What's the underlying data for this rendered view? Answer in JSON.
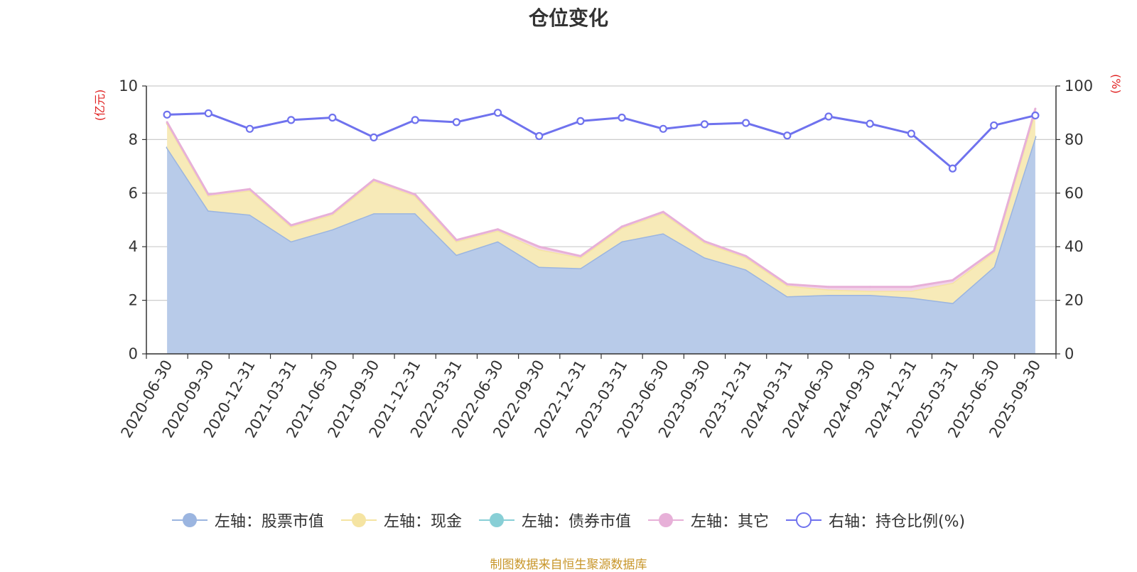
{
  "chart_data": {
    "type": "area",
    "title": "仓位变化",
    "left_axis_label": "(亿元)",
    "right_axis_label": "(%)",
    "left_ylim": [
      0,
      10
    ],
    "left_ticks": [
      0,
      2,
      4,
      6,
      8,
      10
    ],
    "right_ylim": [
      0,
      100
    ],
    "right_ticks": [
      0,
      20,
      40,
      60,
      80,
      100
    ],
    "categories": [
      "2020-06-30",
      "2020-09-30",
      "2020-12-31",
      "2021-03-31",
      "2021-06-30",
      "2021-09-30",
      "2021-12-31",
      "2022-03-31",
      "2022-06-30",
      "2022-09-30",
      "2022-12-31",
      "2023-03-31",
      "2023-06-30",
      "2023-09-30",
      "2023-12-31",
      "2024-03-31",
      "2024-06-30",
      "2024-09-30",
      "2024-12-31",
      "2025-03-31",
      "2025-06-30",
      "2025-09-30"
    ],
    "series": [
      {
        "name": "左轴：股票市值",
        "axis": "left",
        "color": "#9bb5e0",
        "fill": "#b8cbe9",
        "values": [
          7.7,
          5.35,
          5.2,
          4.2,
          4.65,
          5.25,
          5.25,
          3.7,
          4.2,
          3.25,
          3.2,
          4.2,
          4.5,
          3.6,
          3.15,
          2.15,
          2.2,
          2.2,
          2.1,
          1.9,
          3.25,
          8.1
        ]
      },
      {
        "name": "左轴：现金",
        "axis": "left",
        "color": "#f5e4a2",
        "fill": "#f7eab8",
        "values": [
          0.9,
          0.55,
          0.9,
          0.55,
          0.55,
          1.2,
          0.65,
          0.5,
          0.4,
          0.65,
          0.4,
          0.5,
          0.75,
          0.55,
          0.45,
          0.4,
          0.2,
          0.15,
          0.25,
          0.75,
          0.55,
          0.95
        ]
      },
      {
        "name": "左轴：债券市值",
        "axis": "left",
        "color": "#88cfd6",
        "fill": "#bfe3e7",
        "values": [
          0,
          0,
          0,
          0,
          0,
          0,
          0,
          0,
          0,
          0,
          0,
          0,
          0,
          0,
          0,
          0,
          0,
          0,
          0,
          0,
          0,
          0
        ]
      },
      {
        "name": "左轴：其它",
        "axis": "left",
        "color": "#e7b0d8",
        "fill": "#f2d2e8",
        "values": [
          0.05,
          0.05,
          0.05,
          0.05,
          0.05,
          0.05,
          0.05,
          0.05,
          0.05,
          0.1,
          0.05,
          0.05,
          0.05,
          0.05,
          0.05,
          0.05,
          0.1,
          0.15,
          0.15,
          0.1,
          0.05,
          0.1
        ]
      },
      {
        "name": "右轴：持仓比例(%)",
        "axis": "right",
        "color": "#6f72ee",
        "values": [
          89.3,
          89.8,
          84.0,
          87.3,
          88.2,
          80.8,
          87.3,
          86.5,
          90.0,
          81.3,
          86.9,
          88.2,
          84.0,
          85.7,
          86.2,
          81.5,
          88.6,
          85.9,
          82.2,
          69.2,
          85.3,
          89.0
        ]
      }
    ],
    "legend_position": "bottom",
    "grid": true
  },
  "footer": "制图数据来自恒生聚源数据库"
}
